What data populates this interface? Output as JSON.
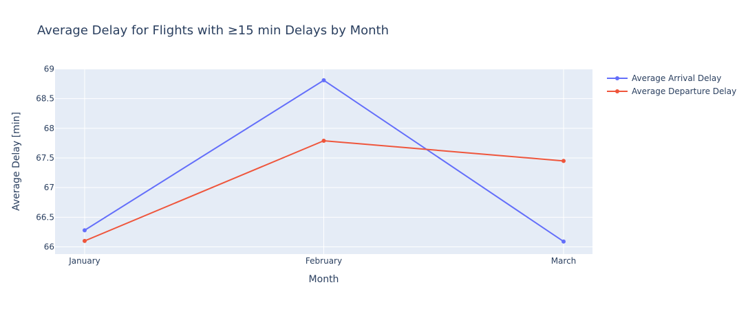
{
  "chart_data": {
    "type": "line",
    "title": "Average Delay for Flights with ≥15 min Delays by Month",
    "xlabel": "Month",
    "ylabel": "Average Delay [min]",
    "categories": [
      "January",
      "February",
      "March"
    ],
    "ylim": [
      65.88,
      69.0
    ],
    "yticks": [
      66,
      66.5,
      67,
      67.5,
      68,
      68.5,
      69
    ],
    "ytick_labels": [
      "66",
      "66.5",
      "67",
      "67.5",
      "68",
      "68.5",
      "69"
    ],
    "grid": true,
    "legend_position": "top-right",
    "series": [
      {
        "name": "Average Arrival Delay",
        "color": "#636efa",
        "values": [
          66.28,
          68.81,
          66.09
        ]
      },
      {
        "name": "Average Departure Delay",
        "color": "#ef553b",
        "values": [
          66.1,
          67.79,
          67.45
        ]
      }
    ],
    "colors": {
      "plot_background": "#e5ecf6",
      "grid": "#ffffff",
      "text": "#2a3f5f"
    }
  }
}
